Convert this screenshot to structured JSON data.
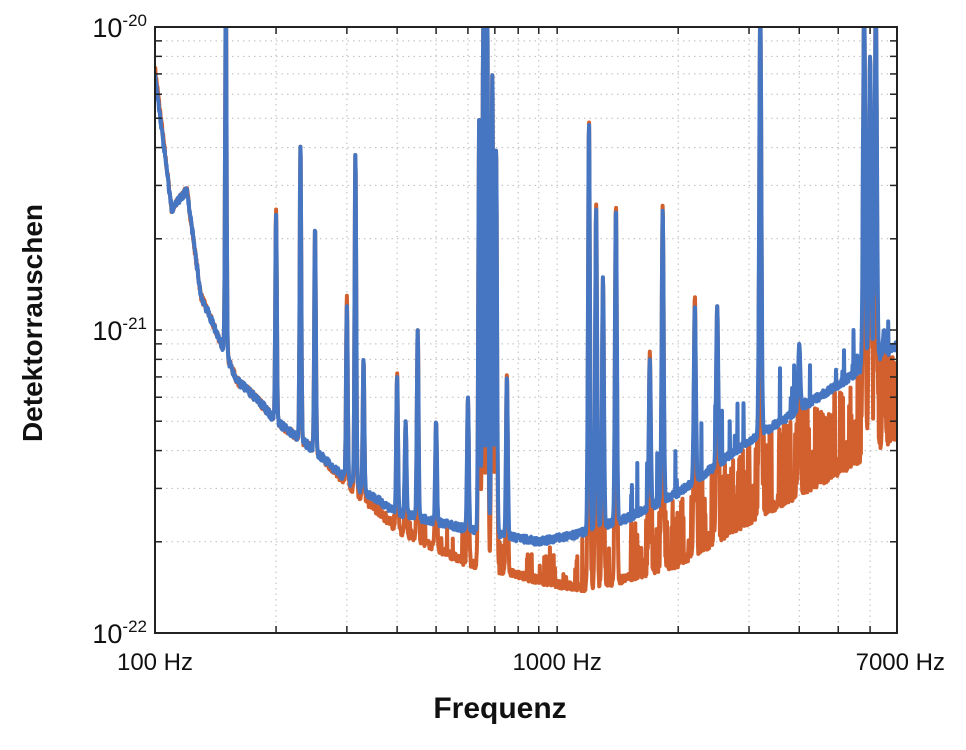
{
  "chart_data": {
    "type": "line",
    "title": "",
    "xlabel": "Frequenz",
    "ylabel": "Detektorrauschen",
    "xscale": "log",
    "yscale": "log",
    "xlim": [
      100,
      7000
    ],
    "ylim": [
      1e-22,
      1e-20
    ],
    "grid": true,
    "x_tick_labels": [
      {
        "value": 100,
        "label": "100 Hz"
      },
      {
        "value": 1000,
        "label": "1000 Hz"
      },
      {
        "value": 7000,
        "label": "7000 Hz"
      }
    ],
    "y_tick_labels": [
      {
        "value": 1e-20,
        "base": "10",
        "exp": "-20"
      },
      {
        "value": 1e-21,
        "base": "10",
        "exp": "-21"
      },
      {
        "value": 1e-22,
        "base": "10",
        "exp": "-22"
      }
    ],
    "series": [
      {
        "name": "orange",
        "color": "#d2602e",
        "baseline": [
          [
            100,
            7.3e-21
          ],
          [
            110,
            2.5e-21
          ],
          [
            120,
            2.9e-21
          ],
          [
            130,
            1.3e-21
          ],
          [
            160,
            6.8e-22
          ],
          [
            180,
            5.9e-22
          ],
          [
            200,
            5e-22
          ],
          [
            250,
            4e-22
          ],
          [
            300,
            3.1e-22
          ],
          [
            350,
            2.6e-22
          ],
          [
            400,
            2.2e-22
          ],
          [
            600,
            1.7e-22
          ],
          [
            1000,
            1.45e-22
          ],
          [
            1200,
            1.4e-22
          ],
          [
            2000,
            1.7e-22
          ],
          [
            3000,
            2.35e-22
          ],
          [
            5000,
            3.4e-22
          ],
          [
            7000,
            4.5e-22
          ]
        ],
        "peaks": [
          [
            150,
            1.3e-20
          ],
          [
            200,
            2.5e-21
          ],
          [
            230,
            4.1e-21
          ],
          [
            250,
            2.2e-21
          ],
          [
            300,
            1.3e-21
          ],
          [
            315,
            3.8e-21
          ],
          [
            330,
            8e-22
          ],
          [
            400,
            7.2e-22
          ],
          [
            420,
            5e-22
          ],
          [
            450,
            1e-21
          ],
          [
            500,
            5e-22
          ],
          [
            600,
            6e-22
          ],
          [
            640,
            5e-21
          ],
          [
            655,
            1e-20
          ],
          [
            670,
            1.2e-20
          ],
          [
            690,
            7e-21
          ],
          [
            705,
            4e-21
          ],
          [
            750,
            7.2e-22
          ],
          [
            1200,
            4.9e-21
          ],
          [
            1250,
            2.6e-21
          ],
          [
            1300,
            1.5e-21
          ],
          [
            1400,
            2.6e-21
          ],
          [
            1700,
            8.5e-22
          ],
          [
            1830,
            2.6e-21
          ],
          [
            2200,
            1.3e-21
          ],
          [
            2500,
            1.2e-21
          ],
          [
            3200,
            1.2e-20
          ],
          [
            4000,
            9e-22
          ],
          [
            5800,
            1.2e-20
          ],
          [
            6000,
            8e-21
          ],
          [
            6200,
            1.2e-20
          ],
          [
            6500,
            1e-21
          ]
        ]
      },
      {
        "name": "blue",
        "color": "#4676c1",
        "baseline": [
          [
            100,
            6.9e-21
          ],
          [
            110,
            2.5e-21
          ],
          [
            120,
            2.9e-21
          ],
          [
            130,
            1.3e-21
          ],
          [
            160,
            6.8e-22
          ],
          [
            180,
            5.9e-22
          ],
          [
            200,
            5e-22
          ],
          [
            250,
            4e-22
          ],
          [
            300,
            3.2e-22
          ],
          [
            400,
            2.5e-22
          ],
          [
            600,
            2.2e-22
          ],
          [
            900,
            2e-22
          ],
          [
            1100,
            2.1e-22
          ],
          [
            1500,
            2.4e-22
          ],
          [
            2000,
            2.9e-22
          ],
          [
            3000,
            4.3e-22
          ],
          [
            5000,
            6.6e-22
          ],
          [
            7000,
            8.9e-22
          ]
        ],
        "peaks": [
          [
            150,
            1.3e-20
          ],
          [
            200,
            2.4e-21
          ],
          [
            230,
            4.1e-21
          ],
          [
            250,
            2.2e-21
          ],
          [
            300,
            1.2e-21
          ],
          [
            315,
            3.8e-21
          ],
          [
            330,
            8e-22
          ],
          [
            400,
            7e-22
          ],
          [
            420,
            5e-22
          ],
          [
            450,
            1e-21
          ],
          [
            500,
            5e-22
          ],
          [
            600,
            6e-22
          ],
          [
            640,
            5e-21
          ],
          [
            655,
            1e-20
          ],
          [
            670,
            1.2e-20
          ],
          [
            690,
            7e-21
          ],
          [
            705,
            4e-21
          ],
          [
            750,
            7e-22
          ],
          [
            1200,
            4.8e-21
          ],
          [
            1250,
            2.5e-21
          ],
          [
            1300,
            1.5e-21
          ],
          [
            1400,
            2.5e-21
          ],
          [
            1700,
            8e-22
          ],
          [
            1830,
            2.5e-21
          ],
          [
            2200,
            1.2e-21
          ],
          [
            2500,
            1.2e-21
          ],
          [
            3200,
            1.2e-20
          ],
          [
            4000,
            9e-22
          ],
          [
            5800,
            1.2e-20
          ],
          [
            6000,
            8e-21
          ],
          [
            6200,
            1.2e-20
          ],
          [
            6500,
            1e-21
          ]
        ]
      }
    ]
  }
}
